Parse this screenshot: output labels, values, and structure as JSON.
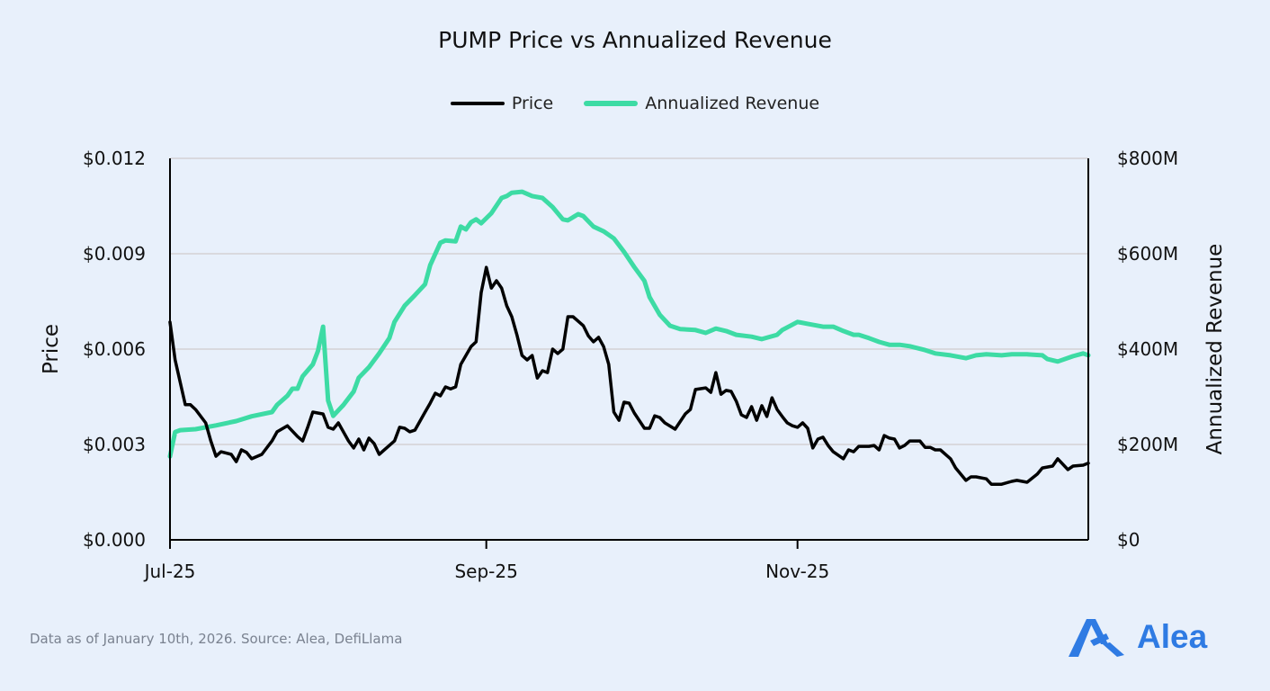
{
  "chart_data": {
    "type": "line",
    "title": "PUMP Price vs Annualized Revenue",
    "xlabel": "",
    "ylabel_left": "Price",
    "ylabel_right": "Annualized Revenue",
    "xlim": [
      "2025-07-01",
      "2025-12-28"
    ],
    "x_ticks": [
      {
        "date": "2025-07-01",
        "label": "Jul-25"
      },
      {
        "date": "2025-09-01",
        "label": "Sep-25"
      },
      {
        "date": "2025-11-01",
        "label": "Nov-25"
      }
    ],
    "ylim_left": [
      0,
      0.012
    ],
    "y_ticks_left": [
      {
        "value": 0,
        "label": "$0.000"
      },
      {
        "value": 0.003,
        "label": "$0.003"
      },
      {
        "value": 0.006,
        "label": "$0.006"
      },
      {
        "value": 0.009,
        "label": "$0.009"
      },
      {
        "value": 0.012,
        "label": "$0.012"
      }
    ],
    "ylim_right": [
      0,
      800
    ],
    "y_ticks_right": [
      {
        "value": 0,
        "label": "$0"
      },
      {
        "value": 200,
        "label": "$200M"
      },
      {
        "value": 400,
        "label": "$400M"
      },
      {
        "value": 600,
        "label": "$600M"
      },
      {
        "value": 800,
        "label": "$800M"
      }
    ],
    "grid": "horizontal",
    "legend_position": "top",
    "series": [
      {
        "name": "Price",
        "axis": "left",
        "color": "#000000",
        "points": [
          [
            "2025-07-01",
            0.00685
          ],
          [
            "2025-07-02",
            0.00566
          ],
          [
            "2025-07-04",
            0.00425
          ],
          [
            "2025-07-05",
            0.00425
          ],
          [
            "2025-07-06",
            0.0041
          ],
          [
            "2025-07-08",
            0.00368
          ],
          [
            "2025-07-09",
            0.00311
          ],
          [
            "2025-07-10",
            0.00263
          ],
          [
            "2025-07-11",
            0.00277
          ],
          [
            "2025-07-13",
            0.00269
          ],
          [
            "2025-07-14",
            0.00246
          ],
          [
            "2025-07-15",
            0.00283
          ],
          [
            "2025-07-16",
            0.00275
          ],
          [
            "2025-07-17",
            0.00255
          ],
          [
            "2025-07-19",
            0.00269
          ],
          [
            "2025-07-21",
            0.00311
          ],
          [
            "2025-07-22",
            0.0034
          ],
          [
            "2025-07-24",
            0.00359
          ],
          [
            "2025-07-26",
            0.00325
          ],
          [
            "2025-07-27",
            0.00311
          ],
          [
            "2025-07-28",
            0.00354
          ],
          [
            "2025-07-29",
            0.00402
          ],
          [
            "2025-07-31",
            0.00396
          ],
          [
            "2025-08-01",
            0.00354
          ],
          [
            "2025-08-02",
            0.00348
          ],
          [
            "2025-08-03",
            0.00368
          ],
          [
            "2025-08-05",
            0.00311
          ],
          [
            "2025-08-06",
            0.00289
          ],
          [
            "2025-08-07",
            0.00317
          ],
          [
            "2025-08-08",
            0.00283
          ],
          [
            "2025-08-09",
            0.0032
          ],
          [
            "2025-08-10",
            0.00303
          ],
          [
            "2025-08-11",
            0.00269
          ],
          [
            "2025-08-13",
            0.00297
          ],
          [
            "2025-08-14",
            0.00311
          ],
          [
            "2025-08-15",
            0.00354
          ],
          [
            "2025-08-16",
            0.00351
          ],
          [
            "2025-08-17",
            0.0034
          ],
          [
            "2025-08-18",
            0.00345
          ],
          [
            "2025-08-20",
            0.00402
          ],
          [
            "2025-08-21",
            0.0043
          ],
          [
            "2025-08-22",
            0.00461
          ],
          [
            "2025-08-23",
            0.00453
          ],
          [
            "2025-08-24",
            0.00481
          ],
          [
            "2025-08-25",
            0.00475
          ],
          [
            "2025-08-26",
            0.00481
          ],
          [
            "2025-08-27",
            0.00552
          ],
          [
            "2025-08-28",
            0.0058
          ],
          [
            "2025-08-29",
            0.00608
          ],
          [
            "2025-08-30",
            0.00623
          ],
          [
            "2025-08-31",
            0.00778
          ],
          [
            "2025-09-01",
            0.00857
          ],
          [
            "2025-09-02",
            0.00792
          ],
          [
            "2025-09-03",
            0.00815
          ],
          [
            "2025-09-04",
            0.00792
          ],
          [
            "2025-09-05",
            0.00736
          ],
          [
            "2025-09-06",
            0.00702
          ],
          [
            "2025-09-07",
            0.00645
          ],
          [
            "2025-09-08",
            0.0058
          ],
          [
            "2025-09-09",
            0.00566
          ],
          [
            "2025-09-10",
            0.0058
          ],
          [
            "2025-09-11",
            0.00509
          ],
          [
            "2025-09-12",
            0.00532
          ],
          [
            "2025-09-13",
            0.00526
          ],
          [
            "2025-09-14",
            0.006
          ],
          [
            "2025-09-15",
            0.00586
          ],
          [
            "2025-09-16",
            0.006
          ],
          [
            "2025-09-17",
            0.00702
          ],
          [
            "2025-09-18",
            0.00702
          ],
          [
            "2025-09-20",
            0.00674
          ],
          [
            "2025-09-21",
            0.00642
          ],
          [
            "2025-09-22",
            0.00623
          ],
          [
            "2025-09-23",
            0.00637
          ],
          [
            "2025-09-24",
            0.00608
          ],
          [
            "2025-09-25",
            0.00552
          ],
          [
            "2025-09-26",
            0.00402
          ],
          [
            "2025-09-27",
            0.00376
          ],
          [
            "2025-09-28",
            0.00433
          ],
          [
            "2025-09-29",
            0.0043
          ],
          [
            "2025-09-30",
            0.00399
          ],
          [
            "2025-10-02",
            0.00351
          ],
          [
            "2025-10-03",
            0.00351
          ],
          [
            "2025-10-04",
            0.0039
          ],
          [
            "2025-10-05",
            0.00385
          ],
          [
            "2025-10-06",
            0.00368
          ],
          [
            "2025-10-08",
            0.00348
          ],
          [
            "2025-10-10",
            0.00396
          ],
          [
            "2025-10-11",
            0.0041
          ],
          [
            "2025-10-12",
            0.00473
          ],
          [
            "2025-10-14",
            0.00478
          ],
          [
            "2025-10-15",
            0.00464
          ],
          [
            "2025-10-16",
            0.00526
          ],
          [
            "2025-10-17",
            0.00458
          ],
          [
            "2025-10-18",
            0.0047
          ],
          [
            "2025-10-19",
            0.00467
          ],
          [
            "2025-10-20",
            0.00436
          ],
          [
            "2025-10-21",
            0.00393
          ],
          [
            "2025-10-22",
            0.00385
          ],
          [
            "2025-10-23",
            0.00419
          ],
          [
            "2025-10-24",
            0.00376
          ],
          [
            "2025-10-25",
            0.00422
          ],
          [
            "2025-10-26",
            0.00388
          ],
          [
            "2025-10-27",
            0.00447
          ],
          [
            "2025-10-28",
            0.0041
          ],
          [
            "2025-10-29",
            0.00388
          ],
          [
            "2025-10-30",
            0.00368
          ],
          [
            "2025-10-31",
            0.00359
          ],
          [
            "2025-11-01",
            0.00354
          ],
          [
            "2025-11-02",
            0.00368
          ],
          [
            "2025-11-03",
            0.00351
          ],
          [
            "2025-11-04",
            0.00289
          ],
          [
            "2025-11-05",
            0.00317
          ],
          [
            "2025-11-06",
            0.00323
          ],
          [
            "2025-11-07",
            0.00297
          ],
          [
            "2025-11-08",
            0.00277
          ],
          [
            "2025-11-10",
            0.00255
          ],
          [
            "2025-11-11",
            0.00283
          ],
          [
            "2025-11-12",
            0.00277
          ],
          [
            "2025-11-13",
            0.00294
          ],
          [
            "2025-11-15",
            0.00294
          ],
          [
            "2025-11-16",
            0.00297
          ],
          [
            "2025-11-17",
            0.00283
          ],
          [
            "2025-11-18",
            0.00328
          ],
          [
            "2025-11-19",
            0.0032
          ],
          [
            "2025-11-20",
            0.00317
          ],
          [
            "2025-11-21",
            0.00289
          ],
          [
            "2025-11-22",
            0.00297
          ],
          [
            "2025-11-23",
            0.00311
          ],
          [
            "2025-11-25",
            0.00311
          ],
          [
            "2025-11-26",
            0.00291
          ],
          [
            "2025-11-27",
            0.00291
          ],
          [
            "2025-11-28",
            0.00283
          ],
          [
            "2025-11-29",
            0.00283
          ],
          [
            "2025-12-01",
            0.00255
          ],
          [
            "2025-12-02",
            0.00226
          ],
          [
            "2025-12-04",
            0.00187
          ],
          [
            "2025-12-05",
            0.00198
          ],
          [
            "2025-12-06",
            0.00198
          ],
          [
            "2025-12-08",
            0.00192
          ],
          [
            "2025-12-09",
            0.00175
          ],
          [
            "2025-12-11",
            0.00175
          ],
          [
            "2025-12-13",
            0.00184
          ],
          [
            "2025-12-14",
            0.00187
          ],
          [
            "2025-12-16",
            0.00181
          ],
          [
            "2025-12-18",
            0.00207
          ],
          [
            "2025-12-19",
            0.00226
          ],
          [
            "2025-12-21",
            0.00232
          ],
          [
            "2025-12-22",
            0.00255
          ],
          [
            "2025-12-24",
            0.00221
          ],
          [
            "2025-12-25",
            0.00232
          ],
          [
            "2025-12-27",
            0.00235
          ],
          [
            "2025-12-28",
            0.00241
          ]
        ]
      },
      {
        "name": "Annualized Revenue",
        "axis": "right",
        "unit": "M",
        "color": "#3ddba4",
        "points": [
          [
            "2025-07-01",
            175
          ],
          [
            "2025-07-02",
            226
          ],
          [
            "2025-07-03",
            230
          ],
          [
            "2025-07-06",
            232
          ],
          [
            "2025-07-10",
            240
          ],
          [
            "2025-07-14",
            249
          ],
          [
            "2025-07-17",
            259
          ],
          [
            "2025-07-21",
            268
          ],
          [
            "2025-07-22",
            283
          ],
          [
            "2025-07-24",
            302
          ],
          [
            "2025-07-25",
            317
          ],
          [
            "2025-07-26",
            317
          ],
          [
            "2025-07-27",
            343
          ],
          [
            "2025-07-29",
            368
          ],
          [
            "2025-07-30",
            396
          ],
          [
            "2025-07-31",
            447
          ],
          [
            "2025-08-01",
            292
          ],
          [
            "2025-08-02",
            260
          ],
          [
            "2025-08-04",
            283
          ],
          [
            "2025-08-06",
            311
          ],
          [
            "2025-08-07",
            340
          ],
          [
            "2025-08-09",
            362
          ],
          [
            "2025-08-11",
            391
          ],
          [
            "2025-08-13",
            423
          ],
          [
            "2025-08-14",
            457
          ],
          [
            "2025-08-16",
            491
          ],
          [
            "2025-08-18",
            513
          ],
          [
            "2025-08-20",
            536
          ],
          [
            "2025-08-21",
            576
          ],
          [
            "2025-08-23",
            623
          ],
          [
            "2025-08-24",
            628
          ],
          [
            "2025-08-26",
            626
          ],
          [
            "2025-08-27",
            657
          ],
          [
            "2025-08-28",
            651
          ],
          [
            "2025-08-29",
            666
          ],
          [
            "2025-08-30",
            672
          ],
          [
            "2025-08-31",
            664
          ],
          [
            "2025-09-02",
            685
          ],
          [
            "2025-09-04",
            717
          ],
          [
            "2025-09-05",
            721
          ],
          [
            "2025-09-06",
            728
          ],
          [
            "2025-09-08",
            730
          ],
          [
            "2025-09-10",
            721
          ],
          [
            "2025-09-12",
            717
          ],
          [
            "2025-09-14",
            698
          ],
          [
            "2025-09-16",
            672
          ],
          [
            "2025-09-17",
            670
          ],
          [
            "2025-09-19",
            683
          ],
          [
            "2025-09-20",
            679
          ],
          [
            "2025-09-22",
            657
          ],
          [
            "2025-09-24",
            647
          ],
          [
            "2025-09-26",
            632
          ],
          [
            "2025-09-28",
            604
          ],
          [
            "2025-09-30",
            572
          ],
          [
            "2025-10-02",
            543
          ],
          [
            "2025-10-03",
            509
          ],
          [
            "2025-10-05",
            472
          ],
          [
            "2025-10-07",
            449
          ],
          [
            "2025-10-09",
            442
          ],
          [
            "2025-10-12",
            440
          ],
          [
            "2025-10-14",
            434
          ],
          [
            "2025-10-16",
            443
          ],
          [
            "2025-10-18",
            438
          ],
          [
            "2025-10-20",
            430
          ],
          [
            "2025-10-23",
            426
          ],
          [
            "2025-10-25",
            421
          ],
          [
            "2025-10-28",
            430
          ],
          [
            "2025-10-29",
            440
          ],
          [
            "2025-11-01",
            457
          ],
          [
            "2025-11-03",
            453
          ],
          [
            "2025-11-06",
            447
          ],
          [
            "2025-11-08",
            447
          ],
          [
            "2025-11-10",
            438
          ],
          [
            "2025-11-12",
            430
          ],
          [
            "2025-11-13",
            430
          ],
          [
            "2025-11-15",
            423
          ],
          [
            "2025-11-17",
            415
          ],
          [
            "2025-11-19",
            409
          ],
          [
            "2025-11-21",
            409
          ],
          [
            "2025-11-23",
            406
          ],
          [
            "2025-11-26",
            398
          ],
          [
            "2025-11-28",
            391
          ],
          [
            "2025-12-01",
            387
          ],
          [
            "2025-12-04",
            381
          ],
          [
            "2025-12-06",
            387
          ],
          [
            "2025-12-08",
            389
          ],
          [
            "2025-12-11",
            387
          ],
          [
            "2025-12-13",
            389
          ],
          [
            "2025-12-16",
            389
          ],
          [
            "2025-12-19",
            387
          ],
          [
            "2025-12-20",
            379
          ],
          [
            "2025-12-22",
            374
          ],
          [
            "2025-12-25",
            385
          ],
          [
            "2025-12-27",
            391
          ],
          [
            "2025-12-28",
            387
          ]
        ]
      }
    ]
  },
  "footer": {
    "source": "Data as of January 10th, 2026. Source: Alea, DefiLlama"
  },
  "brand": {
    "logo_text": "Alea",
    "color": "#2f7be3",
    "icon": "alea-logo-icon"
  },
  "background_color": "#e8f0fb"
}
